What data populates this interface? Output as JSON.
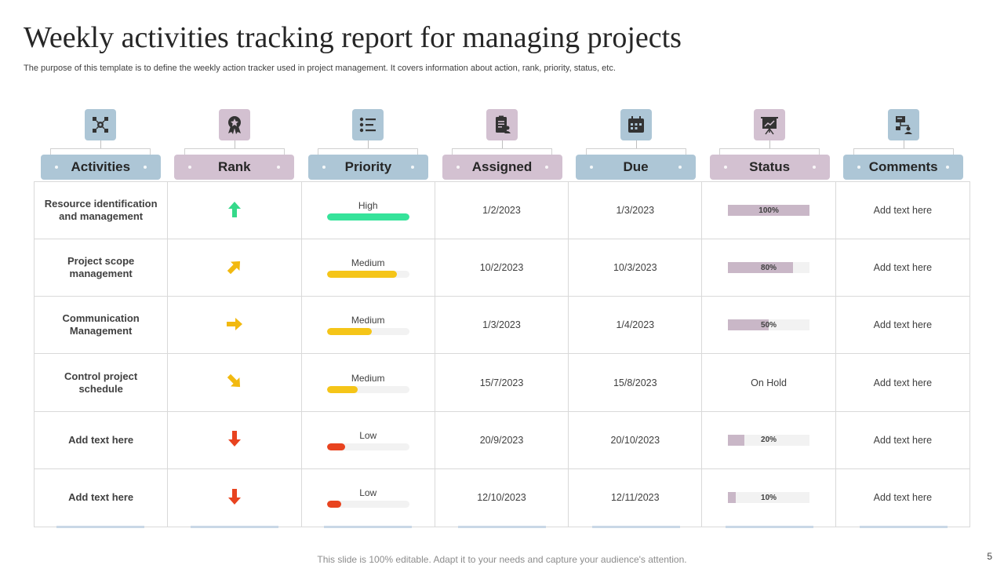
{
  "title": "Weekly activities tracking report for managing projects",
  "subtitle": "The purpose of this template is to define the weekly action tracker used in project management. It covers information about action, rank, priority, status, etc.",
  "columns": [
    {
      "label": "Activities",
      "icon": "network-gear-icon",
      "color": "#adc6d6"
    },
    {
      "label": "Rank",
      "icon": "award-badge-icon",
      "color": "#d3c1d1"
    },
    {
      "label": "Priority",
      "icon": "checklist-icon",
      "color": "#adc6d6"
    },
    {
      "label": "Assigned",
      "icon": "clipboard-user-icon",
      "color": "#d3c1d1"
    },
    {
      "label": "Due",
      "icon": "calendar-icon",
      "color": "#adc6d6"
    },
    {
      "label": "Status",
      "icon": "presentation-board-icon",
      "color": "#d3c1d1"
    },
    {
      "label": "Comments",
      "icon": "org-chart-user-icon",
      "color": "#adc6d6"
    }
  ],
  "rows": [
    {
      "activity": "Resource identification and management",
      "rank": "up",
      "rank_color": "#35d98a",
      "priority": "High",
      "priority_level": 1.0,
      "priority_color": "#35e39a",
      "assigned": "1/2/2023",
      "due": "1/3/2023",
      "status_text": "100%",
      "status_value": 1.0,
      "comment": "Add text here"
    },
    {
      "activity": "Project scope management",
      "rank": "up-right",
      "rank_color": "#f2b90f",
      "priority": "Medium",
      "priority_level": 0.85,
      "priority_color": "#f5c518",
      "assigned": "10/2/2023",
      "due": "10/3/2023",
      "status_text": "80%",
      "status_value": 0.8,
      "comment": "Add text here"
    },
    {
      "activity": "Communication Management",
      "rank": "right",
      "rank_color": "#f2b90f",
      "priority": "Medium",
      "priority_level": 0.55,
      "priority_color": "#f5c518",
      "assigned": "1/3/2023",
      "due": "1/4/2023",
      "status_text": "50%",
      "status_value": 0.5,
      "comment": "Add text here"
    },
    {
      "activity": "Control project schedule",
      "rank": "down-right",
      "rank_color": "#f2b90f",
      "priority": "Medium",
      "priority_level": 0.37,
      "priority_color": "#f5c518",
      "assigned": "15/7/2023",
      "due": "15/8/2023",
      "status_text": "On Hold",
      "status_value": null,
      "comment": "Add text here"
    },
    {
      "activity": "Add text here",
      "rank": "down",
      "rank_color": "#e8431f",
      "priority": "Low",
      "priority_level": 0.22,
      "priority_color": "#e8431f",
      "assigned": "20/9/2023",
      "due": "20/10/2023",
      "status_text": "20%",
      "status_value": 0.2,
      "comment": "Add text here"
    },
    {
      "activity": "Add text here",
      "rank": "down",
      "rank_color": "#e8431f",
      "priority": "Low",
      "priority_level": 0.17,
      "priority_color": "#e8431f",
      "assigned": "12/10/2023",
      "due": "12/11/2023",
      "status_text": "10%",
      "status_value": 0.1,
      "comment": "Add text here"
    }
  ],
  "footer": "This slide is 100% editable. Adapt it to your needs and capture your audience's attention.",
  "page_number": "5"
}
